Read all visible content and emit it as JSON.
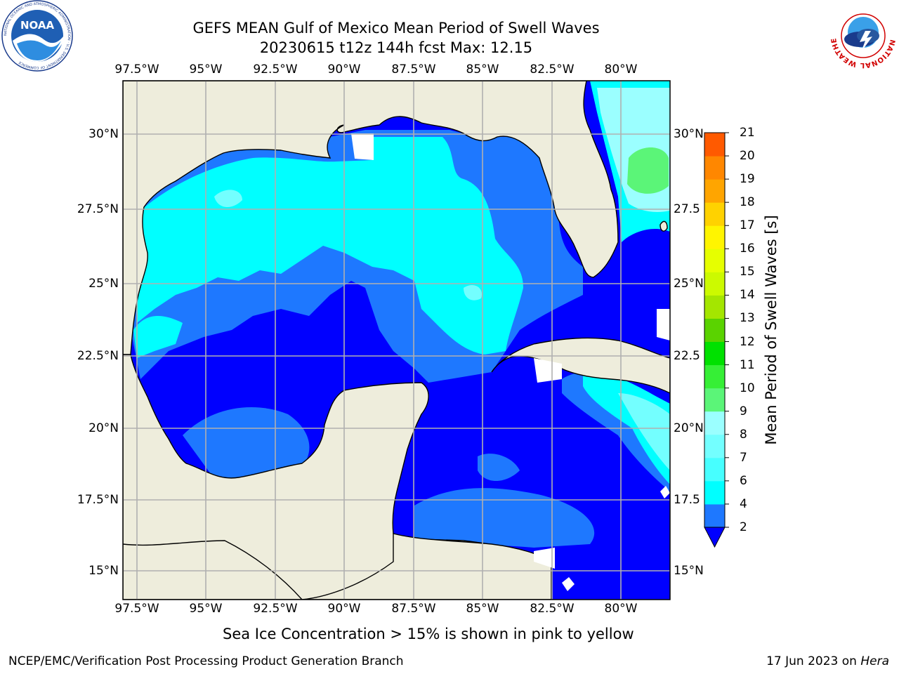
{
  "title": {
    "line1": "GEFS MEAN Gulf of Mexico Mean Period of Swell Waves",
    "line2": "20230615 t12z 144h fcst   Max: 12.15"
  },
  "map": {
    "longitude_labels": [
      "97.5°W",
      "95°W",
      "92.5°W",
      "90°W",
      "87.5°W",
      "85°W",
      "82.5°W",
      "80°W"
    ],
    "latitude_labels_left": [
      "30°N",
      "27.5°N",
      "25°N",
      "22.5°N",
      "20°N",
      "17.5°N",
      "15°N"
    ],
    "latitude_labels_right": [
      "30°N",
      "27.5",
      "25°N",
      "22.5",
      "20°N",
      "17.5",
      "15°N"
    ],
    "land_color": "#eeeddc",
    "grid_color": "#b0b0b0"
  },
  "colorbar": {
    "label": "Mean Period of Swell Waves [s]",
    "ticks": [
      "2",
      "4",
      "6",
      "7",
      "8",
      "9",
      "10",
      "11",
      "12",
      "13",
      "14",
      "15",
      "16",
      "17",
      "18",
      "19",
      "20",
      "21"
    ],
    "colors": [
      "#0000ff",
      "#1e78ff",
      "#00ffff",
      "#47ffff",
      "#73ffff",
      "#9bffff",
      "#5bf578",
      "#36ef36",
      "#00e100",
      "#5ad300",
      "#a4e600",
      "#ccfa00",
      "#e6ff00",
      "#fff500",
      "#ffd200",
      "#ffa500",
      "#ff8700",
      "#ff5a00",
      "#ff2a00",
      "#ff0000"
    ]
  },
  "ice_note": "Sea Ice Concentration > 15% is shown in pink to yellow",
  "footer": {
    "left": "NCEP/EMC/Verification Post Processing Product Generation Branch",
    "right_date": "17 Jun 2023 on",
    "right_host": "Hera"
  },
  "logos": {
    "noaa_icon": "noaa-logo-icon",
    "noaa_text": "NOAA",
    "noaa_ring": "NATIONAL OCEANIC AND ATMOSPHERIC ADMINISTRATION · U.S. DEPARTMENT OF COMMERCE",
    "nws_icon": "nws-logo-icon",
    "nws_ring": "NATIONAL WEATHER SERVICE"
  }
}
